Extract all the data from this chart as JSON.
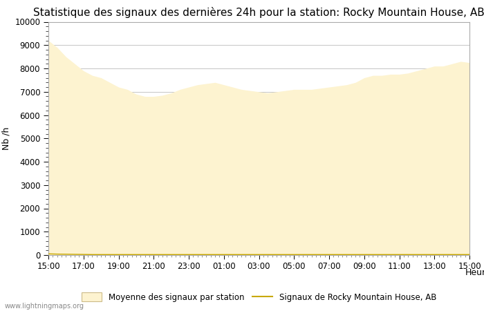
{
  "title": "Statistique des signaux des dernières 24h pour la station: Rocky Mountain House, AB",
  "xlabel": "Heure",
  "ylabel": "Nb /h",
  "ylim": [
    0,
    10000
  ],
  "yticks": [
    0,
    1000,
    2000,
    3000,
    4000,
    5000,
    6000,
    7000,
    8000,
    9000,
    10000
  ],
  "xtick_labels": [
    "15:00",
    "17:00",
    "19:00",
    "21:00",
    "23:00",
    "01:00",
    "03:00",
    "05:00",
    "07:00",
    "09:00",
    "11:00",
    "13:00",
    "15:00"
  ],
  "fill_color": "#fdf3d0",
  "line_color": "#c8a800",
  "background_color": "#ffffff",
  "grid_color": "#bbbbbb",
  "title_fontsize": 11,
  "axis_fontsize": 9,
  "tick_fontsize": 8.5,
  "watermark": "www.lightningmaps.org",
  "legend_fill_label": "Moyenne des signaux par station",
  "legend_line_label": "Signaux de Rocky Mountain House, AB",
  "x_values": [
    0,
    1,
    2,
    3,
    4,
    5,
    6,
    7,
    8,
    9,
    10,
    11,
    12,
    13,
    14,
    15,
    16,
    17,
    18,
    19,
    20,
    21,
    22,
    23,
    24,
    25,
    26,
    27,
    28,
    29,
    30,
    31,
    32,
    33,
    34,
    35,
    36,
    37,
    38,
    39,
    40,
    41,
    42,
    43,
    44,
    45,
    46,
    47,
    48
  ],
  "fill_y": [
    9200,
    8900,
    8500,
    8200,
    7900,
    7700,
    7600,
    7400,
    7200,
    7100,
    6900,
    6800,
    6800,
    6850,
    6950,
    7100,
    7200,
    7300,
    7350,
    7400,
    7300,
    7200,
    7100,
    7050,
    7000,
    6950,
    7000,
    7050,
    7100,
    7100,
    7100,
    7150,
    7200,
    7250,
    7300,
    7400,
    7600,
    7700,
    7700,
    7750,
    7750,
    7800,
    7900,
    8000,
    8100,
    8100,
    8200,
    8300,
    8250
  ],
  "line_y": [
    50,
    40,
    35,
    30,
    25,
    20,
    20,
    20,
    20,
    20,
    20,
    20,
    20,
    20,
    20,
    20,
    20,
    20,
    20,
    20,
    20,
    20,
    20,
    20,
    20,
    20,
    20,
    20,
    20,
    20,
    20,
    20,
    20,
    20,
    20,
    20,
    20,
    20,
    20,
    20,
    20,
    20,
    20,
    20,
    20,
    20,
    20,
    20,
    20
  ]
}
